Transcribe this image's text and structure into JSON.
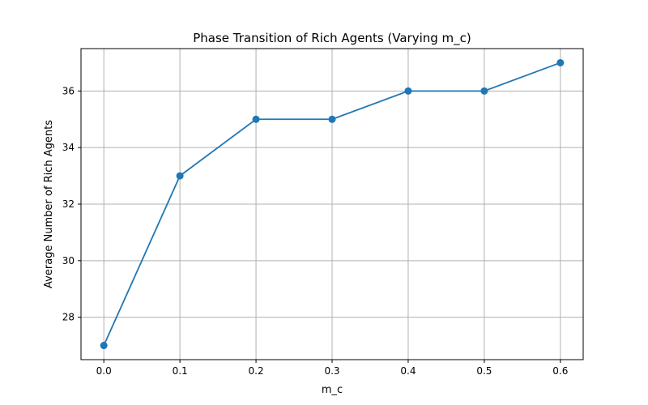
{
  "chart_data": {
    "type": "line",
    "title": "Phase Transition of Rich Agents (Varying m_c)",
    "xlabel": "m_c",
    "ylabel": "Average Number of Rich Agents",
    "x": [
      0.0,
      0.1,
      0.2,
      0.3,
      0.4,
      0.5,
      0.6
    ],
    "series": [
      {
        "values": [
          27,
          33,
          35,
          35,
          36,
          36,
          37
        ]
      }
    ],
    "xlim": [
      -0.03,
      0.63
    ],
    "ylim": [
      26.5,
      37.5
    ],
    "xticks": [
      "0.0",
      "0.1",
      "0.2",
      "0.3",
      "0.4",
      "0.5",
      "0.6"
    ],
    "yticks": [
      "28",
      "30",
      "32",
      "34",
      "36"
    ],
    "grid": true,
    "marker": "circle",
    "color": "#1f77b4"
  }
}
